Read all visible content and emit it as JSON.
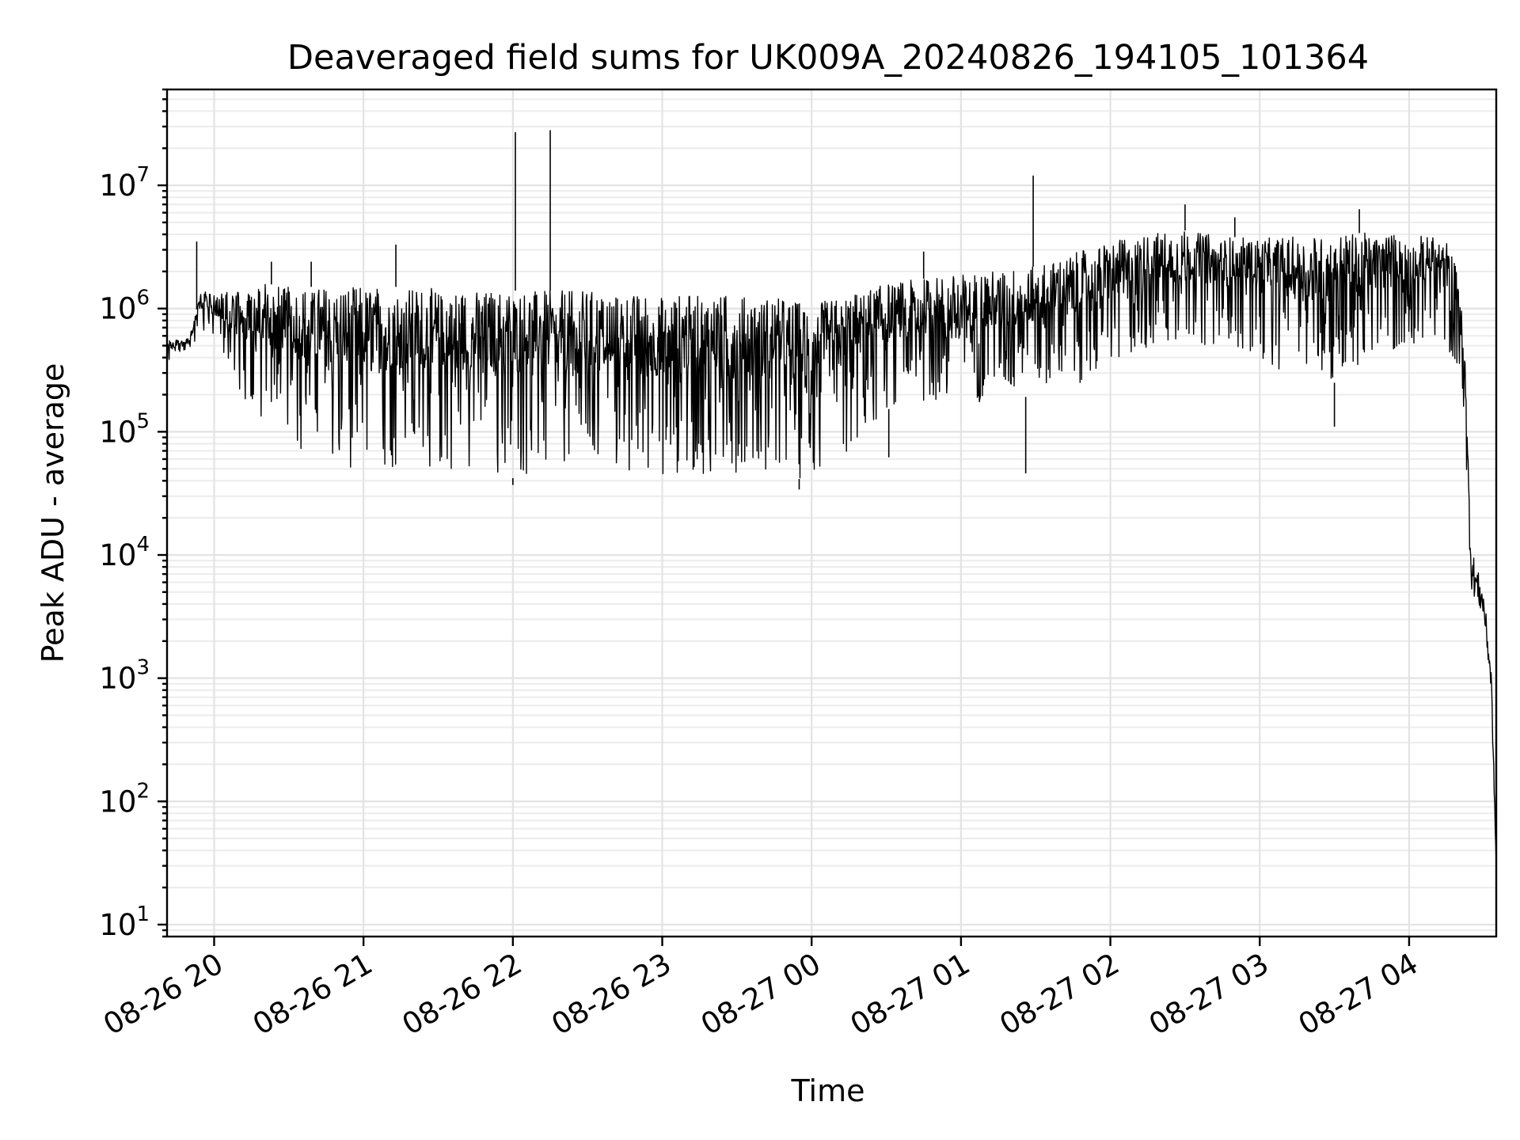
{
  "chart_data": {
    "type": "line",
    "title": "Deaveraged field sums for UK009A_20240826_194105_101364",
    "xlabel": "Time",
    "ylabel": "Peak ADU - average",
    "yscale": "log",
    "ylim": [
      8,
      60000000
    ],
    "xlim": [
      "2024-08-26 19:41:05",
      "2024-08-27 04:35:00"
    ],
    "grid": true,
    "grid_minor": true,
    "legend": "none",
    "line_color": "#000000",
    "x_ticks": [
      {
        "value": "2024-08-26 20:00",
        "label": "08-26 20"
      },
      {
        "value": "2024-08-26 21:00",
        "label": "08-26 21"
      },
      {
        "value": "2024-08-26 22:00",
        "label": "08-26 22"
      },
      {
        "value": "2024-08-26 23:00",
        "label": "08-26 23"
      },
      {
        "value": "2024-08-27 00:00",
        "label": "08-27 00"
      },
      {
        "value": "2024-08-27 01:00",
        "label": "08-27 01"
      },
      {
        "value": "2024-08-27 02:00",
        "label": "08-27 02"
      },
      {
        "value": "2024-08-27 03:00",
        "label": "08-27 03"
      },
      {
        "value": "2024-08-27 04:00",
        "label": "08-27 04"
      }
    ],
    "y_ticks": [
      {
        "value": 10,
        "base": "10",
        "exp": "1"
      },
      {
        "value": 100,
        "base": "10",
        "exp": "2"
      },
      {
        "value": 1000,
        "base": "10",
        "exp": "3"
      },
      {
        "value": 10000,
        "base": "10",
        "exp": "4"
      },
      {
        "value": 100000,
        "base": "10",
        "exp": "5"
      },
      {
        "value": 1000000,
        "base": "10",
        "exp": "6"
      },
      {
        "value": 10000000,
        "base": "10",
        "exp": "7"
      }
    ],
    "series": [
      {
        "x": [
          "2024-08-26 19:41",
          "2024-08-26 19:45",
          "2024-08-26 19:50",
          "2024-08-26 19:55",
          "2024-08-26 20:00",
          "2024-08-26 20:05",
          "2024-08-26 20:10",
          "2024-08-26 20:15",
          "2024-08-26 20:20",
          "2024-08-26 20:30",
          "2024-08-26 20:40",
          "2024-08-26 20:50",
          "2024-08-26 21:00",
          "2024-08-26 21:10",
          "2024-08-26 21:20",
          "2024-08-26 21:30",
          "2024-08-26 21:40",
          "2024-08-26 21:50",
          "2024-08-26 22:00",
          "2024-08-26 22:10",
          "2024-08-26 22:20",
          "2024-08-26 22:30",
          "2024-08-26 22:40",
          "2024-08-26 22:50",
          "2024-08-26 23:00",
          "2024-08-26 23:10",
          "2024-08-26 23:20",
          "2024-08-26 23:30",
          "2024-08-26 23:40",
          "2024-08-26 23:50",
          "2024-08-27 00:00",
          "2024-08-27 00:10",
          "2024-08-27 00:20",
          "2024-08-27 00:30",
          "2024-08-27 00:40",
          "2024-08-27 00:50",
          "2024-08-27 01:00",
          "2024-08-27 01:10",
          "2024-08-27 01:20",
          "2024-08-27 01:30",
          "2024-08-27 01:40",
          "2024-08-27 01:50",
          "2024-08-27 02:00",
          "2024-08-27 02:10",
          "2024-08-27 02:20",
          "2024-08-27 02:30",
          "2024-08-27 02:40",
          "2024-08-27 02:50",
          "2024-08-27 03:00",
          "2024-08-27 03:10",
          "2024-08-27 03:20",
          "2024-08-27 03:30",
          "2024-08-27 03:40",
          "2024-08-27 03:50",
          "2024-08-27 04:00",
          "2024-08-27 04:10",
          "2024-08-27 04:15",
          "2024-08-27 04:20",
          "2024-08-27 04:23",
          "2024-08-27 04:25",
          "2024-08-27 04:30",
          "2024-08-27 04:33",
          "2024-08-27 04:35"
        ],
        "y_high": [
          550000,
          560000,
          580000,
          1400000,
          1300000,
          1350000,
          1400000,
          1500000,
          1600000,
          1500000,
          1500000,
          1500000,
          1500000,
          1500000,
          1500000,
          1450000,
          1400000,
          1400000,
          1400000,
          1400000,
          1400000,
          1400000,
          1350000,
          1300000,
          1300000,
          1300000,
          1300000,
          1300000,
          1250000,
          1200000,
          1100000,
          1200000,
          1400000,
          1600000,
          1700000,
          1800000,
          1900000,
          2000000,
          2100000,
          2200000,
          2600000,
          3000000,
          3500000,
          3800000,
          4200000,
          4300000,
          4000000,
          3800000,
          3700000,
          3800000,
          3900000,
          4000000,
          4100000,
          4100000,
          4000000,
          3800000,
          3500000,
          2000000,
          300000,
          15000,
          6000,
          1500,
          30
        ],
        "y_low": [
          350000,
          420000,
          450000,
          650000,
          550000,
          350000,
          200000,
          150000,
          120000,
          80000,
          60000,
          50000,
          50000,
          50000,
          50000,
          50000,
          48000,
          45000,
          42000,
          45000,
          46000,
          45000,
          45000,
          44000,
          43000,
          45000,
          46000,
          47000,
          48000,
          45000,
          38000,
          50000,
          90000,
          150000,
          180000,
          170000,
          160000,
          180000,
          180000,
          200000,
          250000,
          250000,
          300000,
          450000,
          500000,
          500000,
          500000,
          480000,
          400000,
          300000,
          250000,
          250000,
          350000,
          400000,
          500000,
          600000,
          500000,
          300000,
          30000,
          4000,
          2500,
          600,
          30
        ],
        "spikes": [
          {
            "x": "2024-08-26 19:53",
            "y": 3500000
          },
          {
            "x": "2024-08-26 20:23",
            "y": 2400000
          },
          {
            "x": "2024-08-26 20:39",
            "y": 2400000
          },
          {
            "x": "2024-08-26 21:13",
            "y": 3300000
          },
          {
            "x": "2024-08-26 22:01",
            "y": 27000000
          },
          {
            "x": "2024-08-26 22:15",
            "y": 28000000
          },
          {
            "x": "2024-08-27 00:45",
            "y": 2900000
          },
          {
            "x": "2024-08-27 01:29",
            "y": 12000000
          },
          {
            "x": "2024-08-27 02:30",
            "y": 7000000
          },
          {
            "x": "2024-08-27 02:50",
            "y": 5500000
          },
          {
            "x": "2024-08-27 03:40",
            "y": 6400000
          }
        ],
        "dips": [
          {
            "x": "2024-08-26 22:00",
            "y": 37000
          },
          {
            "x": "2024-08-26 23:55",
            "y": 34000
          },
          {
            "x": "2024-08-27 01:26",
            "y": 46000
          },
          {
            "x": "2024-08-27 00:31",
            "y": 62000
          },
          {
            "x": "2024-08-27 03:30",
            "y": 110000
          }
        ]
      }
    ]
  }
}
